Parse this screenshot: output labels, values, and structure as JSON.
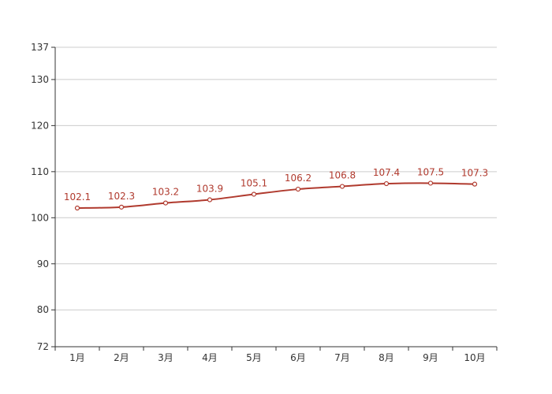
{
  "chart_data": {
    "type": "line",
    "title": "",
    "xlabel": "",
    "ylabel": "",
    "categories": [
      "1月",
      "2月",
      "3月",
      "4月",
      "5月",
      "6月",
      "7月",
      "8月",
      "9月",
      "10月"
    ],
    "series": [
      {
        "values": [
          102.1,
          102.3,
          103.2,
          103.9,
          105.1,
          106.2,
          106.8,
          107.4,
          107.5,
          107.3
        ]
      }
    ],
    "ylim": [
      72,
      137
    ],
    "yticks": [
      72,
      80,
      90,
      100,
      110,
      120,
      130,
      137
    ],
    "grid": true,
    "legend": "none",
    "smooth": true,
    "data_labels": true,
    "colors": {
      "line": "#b03a2e",
      "marker_fill": "#ffffff",
      "label": "#b03a2e",
      "grid": "#cccccc",
      "axis": "#333333"
    }
  }
}
